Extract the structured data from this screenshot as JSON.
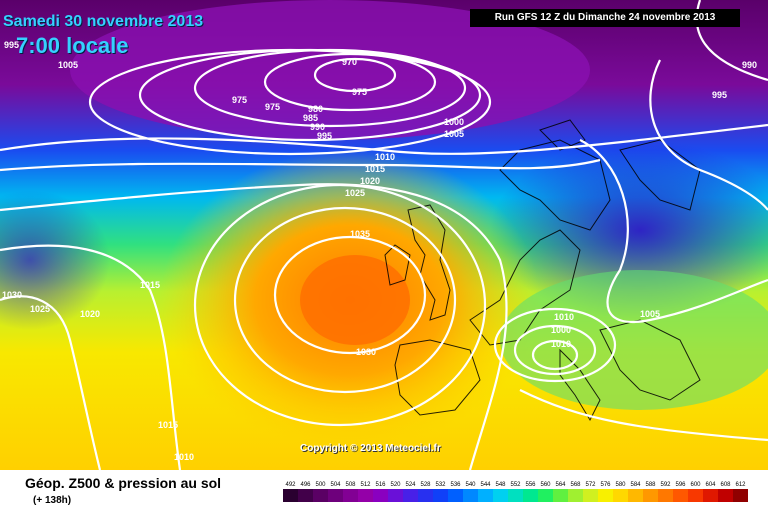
{
  "header": {
    "date": "Samedi 30 novembre 2013",
    "time": "7:00 locale",
    "run": "Run GFS 12 Z du Dimanche 24 novembre 2013"
  },
  "map": {
    "copyright": "Copyright © 2013 Meteociel.fr",
    "isobar_labels": [
      "995",
      "1005",
      "970",
      "975",
      "975",
      "975",
      "980",
      "985",
      "990",
      "995",
      "1000",
      "1005",
      "1010",
      "1015",
      "1020",
      "1025",
      "1035",
      "1015",
      "1030",
      "1025",
      "1020",
      "1030",
      "1015",
      "1010",
      "1010",
      "1005",
      "1000",
      "1010",
      "995",
      "990"
    ]
  },
  "legend": {
    "title": "Géop. Z500 & pression au sol",
    "subtitle": "(+ 138h)",
    "scale_values": [
      "492",
      "496",
      "500",
      "504",
      "508",
      "512",
      "516",
      "520",
      "524",
      "528",
      "532",
      "536",
      "540",
      "544",
      "548",
      "552",
      "556",
      "560",
      "564",
      "568",
      "572",
      "576",
      "580",
      "584",
      "588",
      "592",
      "596",
      "600",
      "604",
      "608",
      "612"
    ],
    "scale_colors": [
      "#2a0030",
      "#42004a",
      "#5a0064",
      "#6e007c",
      "#820094",
      "#9400a8",
      "#8a00c0",
      "#6a10d8",
      "#4820e8",
      "#2830f0",
      "#1040f8",
      "#0060ff",
      "#0088ff",
      "#00b0ff",
      "#00d0f0",
      "#00e0c0",
      "#00e890",
      "#20f060",
      "#60f040",
      "#a0f030",
      "#d0f020",
      "#f8f000",
      "#ffd800",
      "#ffb800",
      "#ff9800",
      "#ff7800",
      "#ff5800",
      "#f83800",
      "#e01800",
      "#c00000",
      "#900000"
    ]
  }
}
